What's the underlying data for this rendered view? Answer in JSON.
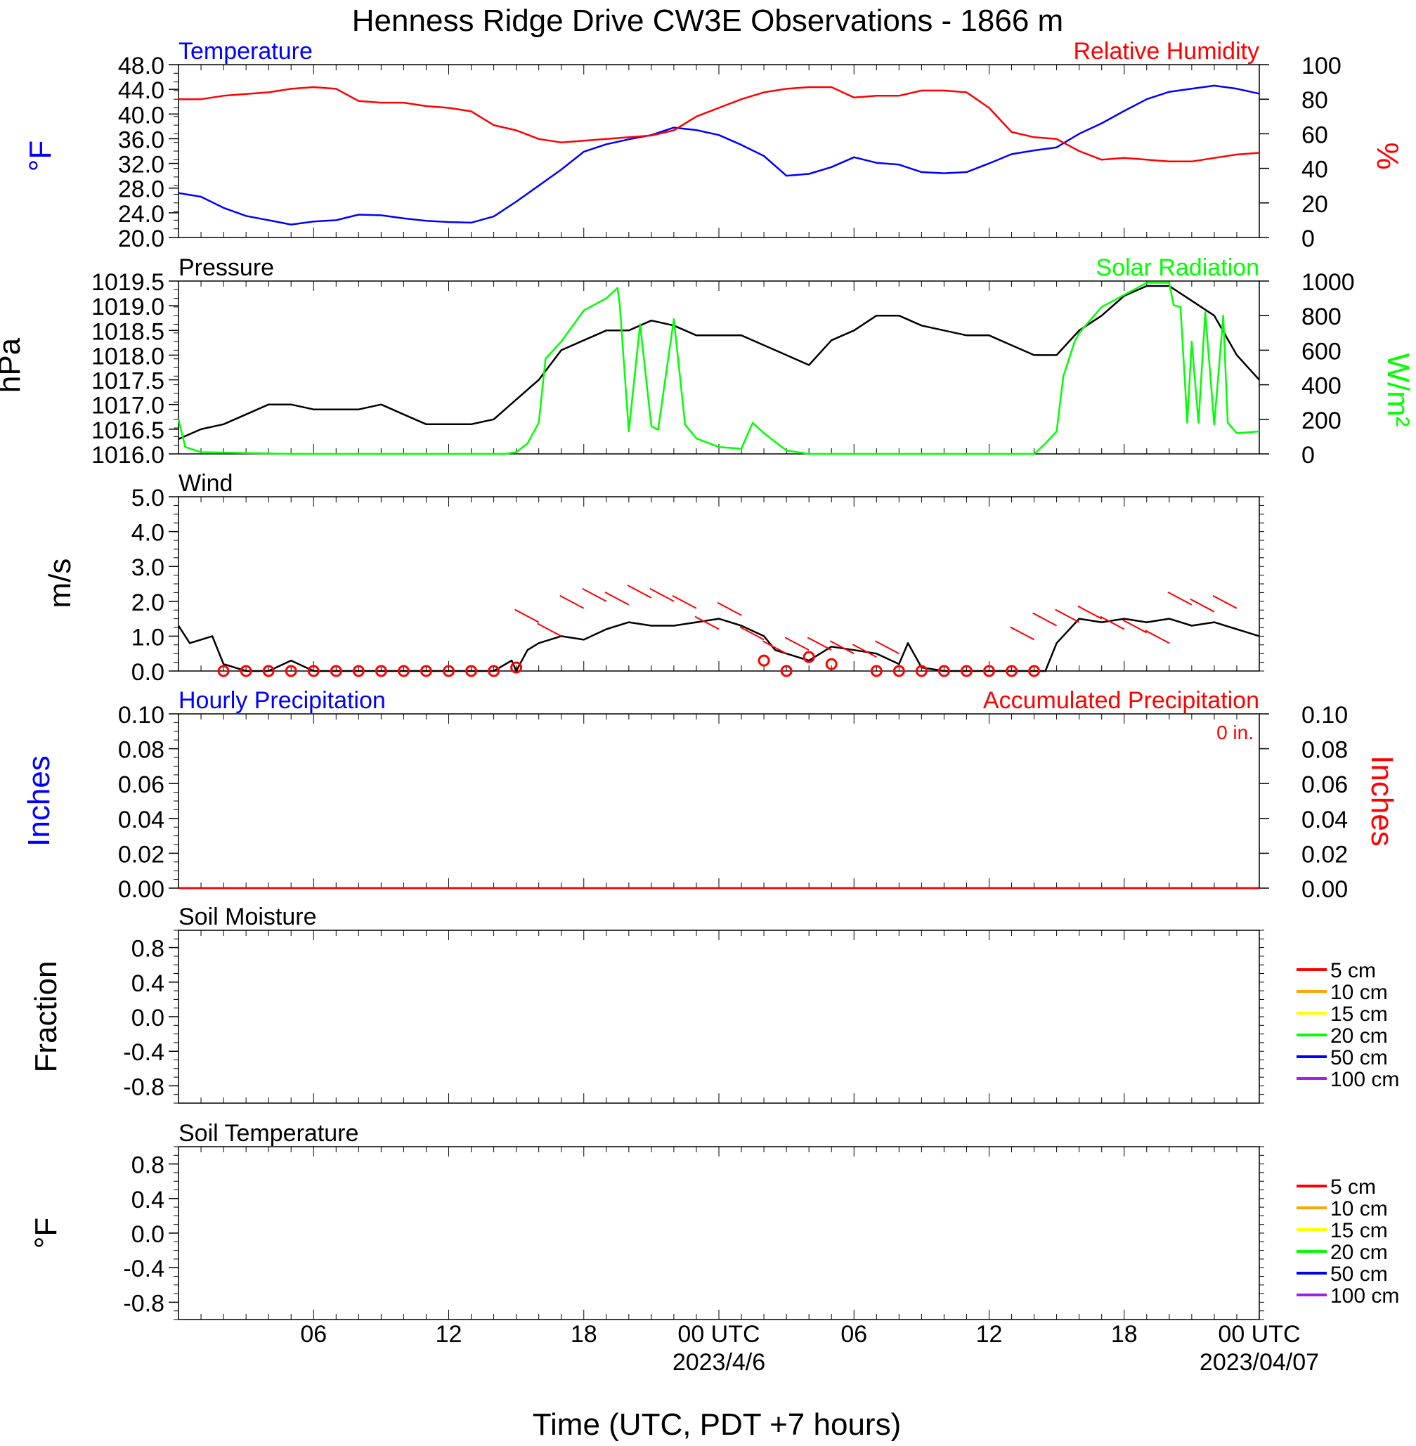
{
  "title": "Henness Ridge Drive CW3E Observations - 1866 m",
  "x_axis": {
    "label": "Time (UTC, PDT +7 hours)",
    "range_hours": [
      0,
      48
    ],
    "major_ticks": [
      {
        "h": 6,
        "label": "06"
      },
      {
        "h": 12,
        "label": "12"
      },
      {
        "h": 18,
        "label": "18"
      },
      {
        "h": 24,
        "label": "00 UTC",
        "sublabel": "2023/4/6"
      },
      {
        "h": 30,
        "label": "06"
      },
      {
        "h": 36,
        "label": "12"
      },
      {
        "h": 42,
        "label": "18"
      },
      {
        "h": 48,
        "label": "00 UTC",
        "sublabel": "2023/04/07"
      }
    ]
  },
  "colors": {
    "temperature": "#0000ff",
    "humidity": "#ff0000",
    "pressure": "#000000",
    "solar": "#00ff00",
    "wind": "#000000",
    "wind_barb": "#ff0000",
    "hourly_precip": "#0000ff",
    "accum_precip": "#ff0000"
  },
  "chart_data": [
    {
      "id": "temp_rh",
      "type": "line",
      "left_title": "Temperature",
      "right_title": "Relative Humidity",
      "left_unit": "°F",
      "right_unit": "%",
      "left_ticks": [
        "48.0",
        "44.0",
        "40.0",
        "36.0",
        "32.0",
        "28.0",
        "24.0",
        "20.0"
      ],
      "right_ticks": [
        "100",
        "80",
        "60",
        "40",
        "20",
        "0"
      ],
      "ylim_left": [
        20,
        48
      ],
      "ylim_right": [
        0,
        100
      ],
      "series": [
        {
          "name": "Temperature",
          "axis": "left",
          "x": [
            0,
            1,
            2,
            3,
            4,
            5,
            6,
            7,
            8,
            9,
            10,
            11,
            12,
            13,
            14,
            15,
            16,
            17,
            18,
            19,
            20,
            21,
            22,
            23,
            24,
            25,
            26,
            27,
            28,
            29,
            30,
            31,
            32,
            33,
            34,
            35,
            36,
            37,
            38,
            39,
            40,
            41,
            42,
            43,
            44,
            45,
            46,
            47,
            48
          ],
          "y": [
            27.2,
            26.6,
            24.8,
            23.5,
            22.8,
            22.1,
            22.6,
            22.8,
            23.7,
            23.6,
            23.1,
            22.7,
            22.5,
            22.4,
            23.4,
            25.8,
            28.4,
            31.0,
            33.9,
            35.1,
            35.9,
            36.6,
            37.8,
            37.4,
            36.6,
            35.0,
            33.2,
            30.0,
            30.3,
            31.4,
            33.0,
            32.1,
            31.8,
            30.6,
            30.4,
            30.6,
            32.0,
            33.5,
            34.1,
            34.6,
            36.8,
            38.5,
            40.5,
            42.4,
            43.6,
            44.1,
            44.6,
            44.1,
            43.3
          ]
        },
        {
          "name": "Relative Humidity",
          "axis": "right",
          "x": [
            0,
            1,
            2,
            3,
            4,
            5,
            6,
            7,
            8,
            9,
            10,
            11,
            12,
            13,
            14,
            15,
            16,
            17,
            18,
            19,
            20,
            21,
            22,
            23,
            24,
            25,
            26,
            27,
            28,
            29,
            30,
            31,
            32,
            33,
            34,
            35,
            36,
            37,
            38,
            39,
            40,
            41,
            42,
            43,
            44,
            45,
            46,
            47,
            48
          ],
          "y": [
            80,
            80,
            82,
            83,
            84,
            86,
            87,
            86,
            79,
            78,
            78,
            76,
            75,
            73,
            65,
            62,
            57,
            55,
            56,
            57,
            58,
            59,
            62,
            70,
            75,
            80,
            84,
            86,
            87,
            87,
            81,
            82,
            82,
            85,
            85,
            84,
            75,
            61,
            58,
            57,
            50,
            45,
            46,
            45,
            44,
            44,
            46,
            48,
            49
          ]
        }
      ]
    },
    {
      "id": "pressure_solar",
      "type": "line",
      "left_title": "Pressure",
      "right_title": "Solar Radiation",
      "left_unit": "hPa",
      "right_unit": "W/m²",
      "left_ticks": [
        "1019.5",
        "1019.0",
        "1018.5",
        "1018.0",
        "1017.5",
        "1017.0",
        "1016.5",
        "1016.0"
      ],
      "right_ticks": [
        "1000",
        "800",
        "600",
        "400",
        "200",
        "0"
      ],
      "ylim_left": [
        1016.0,
        1019.5
      ],
      "ylim_right": [
        0,
        1000
      ],
      "series": [
        {
          "name": "Pressure",
          "axis": "left",
          "x": [
            0,
            1,
            2,
            3,
            4,
            5,
            6,
            7,
            8,
            9,
            10,
            11,
            12,
            13,
            14,
            15,
            16,
            17,
            18,
            19,
            20,
            21,
            22,
            23,
            24,
            25,
            26,
            27,
            28,
            29,
            30,
            31,
            32,
            33,
            34,
            35,
            36,
            37,
            38,
            39,
            40,
            41,
            42,
            43,
            44,
            45,
            46,
            47,
            48
          ],
          "y": [
            1016.3,
            1016.5,
            1016.6,
            1016.8,
            1017.0,
            1017.0,
            1016.9,
            1016.9,
            1016.9,
            1017.0,
            1016.8,
            1016.6,
            1016.6,
            1016.6,
            1016.7,
            1017.1,
            1017.5,
            1018.1,
            1018.3,
            1018.5,
            1018.5,
            1018.7,
            1018.6,
            1018.4,
            1018.4,
            1018.4,
            1018.2,
            1018.0,
            1017.8,
            1018.3,
            1018.5,
            1018.8,
            1018.8,
            1018.6,
            1018.5,
            1018.4,
            1018.4,
            1018.2,
            1018.0,
            1018.0,
            1018.5,
            1018.8,
            1019.2,
            1019.4,
            1019.4,
            1019.1,
            1018.8,
            1018.0,
            1017.5
          ]
        },
        {
          "name": "Solar Radiation",
          "axis": "right",
          "x": [
            0,
            0.3,
            1,
            5,
            10,
            14.5,
            15,
            15.5,
            16,
            16.3,
            17,
            18,
            19,
            19.5,
            19.6,
            20,
            20.5,
            21,
            21.3,
            22,
            22.5,
            23,
            24,
            25,
            25.5,
            26,
            27,
            28,
            32,
            35,
            38,
            38.5,
            39,
            39.3,
            39.8,
            40,
            41,
            42,
            43,
            44,
            44.2,
            44.5,
            44.8,
            45,
            45.3,
            45.6,
            46,
            46.4,
            46.6,
            47,
            48
          ],
          "y": [
            200,
            40,
            10,
            0,
            0,
            0,
            10,
            60,
            180,
            550,
            650,
            830,
            900,
            960,
            860,
            130,
            750,
            160,
            140,
            780,
            170,
            90,
            40,
            30,
            180,
            120,
            20,
            0,
            0,
            0,
            0,
            60,
            130,
            450,
            650,
            700,
            850,
            920,
            990,
            990,
            860,
            850,
            180,
            650,
            180,
            820,
            170,
            800,
            180,
            120,
            130
          ]
        }
      ]
    },
    {
      "id": "wind",
      "type": "line",
      "left_title": "Wind",
      "left_unit": "m/s",
      "left_ticks": [
        "5.0",
        "4.0",
        "3.0",
        "2.0",
        "1.0",
        "0.0"
      ],
      "ylim_left": [
        0,
        5
      ],
      "series": [
        {
          "name": "Wind Speed",
          "axis": "left",
          "x": [
            0,
            0.5,
            1,
            1.5,
            2,
            3,
            4,
            5,
            6,
            7,
            8,
            9,
            10,
            11,
            12,
            13,
            14,
            14.8,
            15,
            15.5,
            16,
            17,
            18,
            19,
            20,
            21,
            22,
            23,
            24,
            25,
            26,
            26.5,
            27,
            27.5,
            28,
            29,
            30,
            31,
            32,
            32.4,
            33,
            34,
            35,
            36,
            37,
            38,
            38.5,
            39,
            40,
            41,
            42,
            43,
            44,
            45,
            46,
            47,
            48
          ],
          "y": [
            1.3,
            0.8,
            0.9,
            1.0,
            0.2,
            0.0,
            0.0,
            0.3,
            0.0,
            0.0,
            0.0,
            0.0,
            0.0,
            0.0,
            0.0,
            0.0,
            0.0,
            0.3,
            0.0,
            0.6,
            0.8,
            1.0,
            0.9,
            1.2,
            1.4,
            1.3,
            1.3,
            1.4,
            1.5,
            1.3,
            1.0,
            0.6,
            0.5,
            0.4,
            0.3,
            0.7,
            0.6,
            0.5,
            0.2,
            0.8,
            0.1,
            0.0,
            0.0,
            0.0,
            0.0,
            0.0,
            0.0,
            0.8,
            1.5,
            1.4,
            1.5,
            1.4,
            1.5,
            1.3,
            1.4,
            1.2,
            1.0
          ]
        },
        {
          "name": "Calm",
          "axis": "left",
          "marker": "circle",
          "x": [
            2,
            3,
            4,
            5,
            6,
            7,
            8,
            9,
            10,
            11,
            12,
            13,
            14,
            15,
            26,
            27,
            28,
            29,
            31,
            32,
            33,
            34,
            35,
            36,
            37,
            38
          ],
          "y": [
            0,
            0,
            0,
            0,
            0,
            0,
            0,
            0,
            0,
            0,
            0,
            0,
            0,
            0.1,
            0.3,
            0,
            0.4,
            0.2,
            0,
            0,
            0,
            0,
            0,
            0,
            0,
            0
          ]
        },
        {
          "name": "Wind Barb",
          "axis": "left",
          "marker": "barb",
          "x": [
            16,
            17,
            18,
            19,
            20,
            21,
            22,
            23,
            24,
            25,
            26,
            27,
            28,
            29,
            30,
            31,
            32,
            38,
            39,
            40,
            41,
            42,
            43,
            44,
            45,
            46,
            47
          ],
          "y": [
            1.4,
            1.0,
            1.8,
            2.0,
            1.9,
            2.1,
            2.0,
            1.8,
            1.2,
            1.6,
            0.9,
            0.5,
            0.6,
            0.6,
            0.5,
            0.4,
            0.5,
            0.9,
            1.3,
            1.4,
            1.5,
            1.2,
            1.1,
            0.8,
            1.9,
            1.7,
            1.8
          ]
        }
      ]
    },
    {
      "id": "precip",
      "type": "line",
      "left_title": "Hourly Precipitation",
      "right_title": "Accumulated Precipitation",
      "annotation": "0 in.",
      "left_unit": "Inches",
      "right_unit": "Inches",
      "left_ticks": [
        "0.10",
        "0.08",
        "0.06",
        "0.04",
        "0.02",
        "0.00"
      ],
      "right_ticks": [
        "0.10",
        "0.08",
        "0.06",
        "0.04",
        "0.02",
        "0.00"
      ],
      "ylim_left": [
        0,
        0.1
      ],
      "ylim_right": [
        0,
        0.1
      ],
      "series": [
        {
          "name": "Hourly Precipitation",
          "axis": "left",
          "x": [
            0,
            48
          ],
          "y": [
            0,
            0
          ]
        },
        {
          "name": "Accumulated Precipitation",
          "axis": "right",
          "x": [
            0,
            48
          ],
          "y": [
            0,
            0
          ]
        }
      ]
    },
    {
      "id": "soil_moisture",
      "type": "line",
      "left_title": "Soil Moisture",
      "left_unit": "Fraction",
      "left_ticks": [
        "0.8",
        "0.4",
        "0.0",
        "-0.4",
        "-0.8"
      ],
      "ylim_left": [
        -1,
        1
      ],
      "legend": [
        {
          "label": "5 cm",
          "color": "#ff0000"
        },
        {
          "label": "10 cm",
          "color": "#ffa500"
        },
        {
          "label": "15 cm",
          "color": "#ffff00"
        },
        {
          "label": "20 cm",
          "color": "#00ff00"
        },
        {
          "label": "50 cm",
          "color": "#0000ff"
        },
        {
          "label": "100 cm",
          "color": "#a020f0"
        }
      ],
      "series": []
    },
    {
      "id": "soil_temp",
      "type": "line",
      "left_title": "Soil Temperature",
      "left_unit": "°F",
      "left_ticks": [
        "0.8",
        "0.4",
        "0.0",
        "-0.4",
        "-0.8"
      ],
      "ylim_left": [
        -1,
        1
      ],
      "legend": [
        {
          "label": "5 cm",
          "color": "#ff0000"
        },
        {
          "label": "10 cm",
          "color": "#ffa500"
        },
        {
          "label": "15 cm",
          "color": "#ffff00"
        },
        {
          "label": "20 cm",
          "color": "#00ff00"
        },
        {
          "label": "50 cm",
          "color": "#0000ff"
        },
        {
          "label": "100 cm",
          "color": "#a020f0"
        }
      ],
      "series": []
    }
  ]
}
